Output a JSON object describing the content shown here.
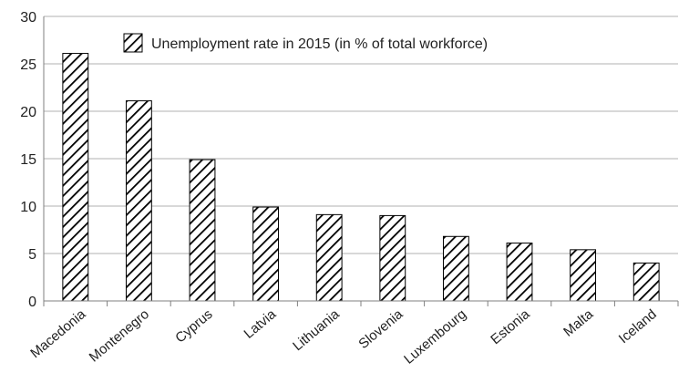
{
  "chart_data": {
    "type": "bar",
    "title": "",
    "xlabel": "",
    "ylabel": "",
    "categories": [
      "Macedonia",
      "Montenegro",
      "Cyprus",
      "Latvia",
      "Lithuania",
      "Slovenia",
      "Luxembourg",
      "Estonia",
      "Malta",
      "Iceland"
    ],
    "series": [
      {
        "name": "Unemployment rate in 2015 (in % of total workforce)",
        "values": [
          26.1,
          21.1,
          14.9,
          9.9,
          9.1,
          9.0,
          6.8,
          6.1,
          5.4,
          4.0
        ]
      }
    ],
    "ylim": [
      0,
      30
    ],
    "yticks": [
      "0",
      "5",
      "10",
      "15",
      "20",
      "25",
      "30"
    ],
    "grid": true,
    "legend_position": "top-center",
    "bar_fill": "hatched",
    "colors": {
      "bar_stroke": "#000000",
      "grid": "#b0b0b0",
      "axis": "#808080",
      "text": "#222222"
    }
  }
}
